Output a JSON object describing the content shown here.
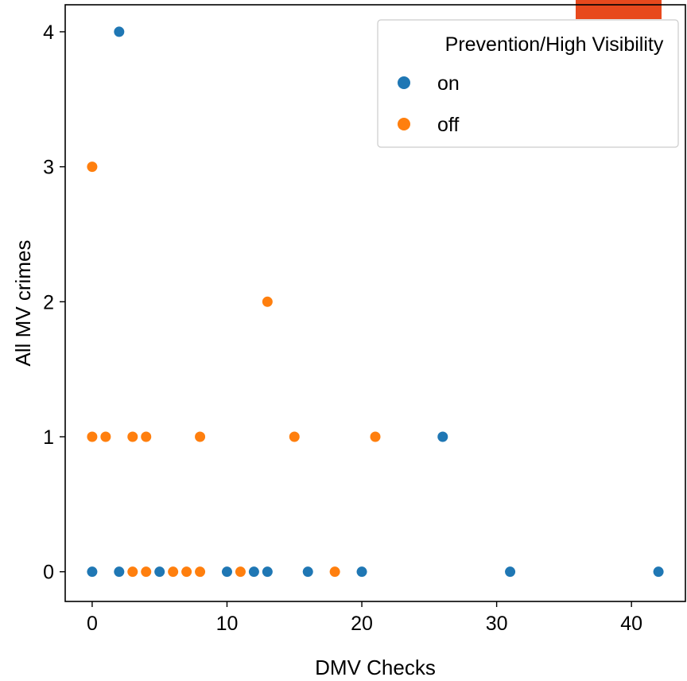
{
  "colors": {
    "on": "#1f77b4",
    "off": "#ff7f0e",
    "corner_badge": "#e8491d"
  },
  "chart_data": {
    "type": "scatter",
    "title": "",
    "xlabel": "DMV Checks",
    "ylabel": "All MV crimes",
    "xlim": [
      -2,
      44
    ],
    "ylim": [
      -0.22,
      4.2
    ],
    "xticks": [
      0,
      10,
      20,
      30,
      40
    ],
    "yticks": [
      0,
      1,
      2,
      3,
      4
    ],
    "grid": false,
    "legend": {
      "title": "Prevention/High Visibility",
      "placement": "top-right",
      "entries": [
        "on",
        "off"
      ]
    },
    "series": [
      {
        "name": "on",
        "points": [
          [
            2,
            4
          ],
          [
            26,
            1
          ],
          [
            0,
            0
          ],
          [
            2,
            0
          ],
          [
            5,
            0
          ],
          [
            10,
            0
          ],
          [
            12,
            0
          ],
          [
            13,
            0
          ],
          [
            16,
            0
          ],
          [
            20,
            0
          ],
          [
            31,
            0
          ],
          [
            42,
            0
          ]
        ]
      },
      {
        "name": "off",
        "points": [
          [
            0,
            3
          ],
          [
            13,
            2
          ],
          [
            0,
            1
          ],
          [
            1,
            1
          ],
          [
            3,
            1
          ],
          [
            4,
            1
          ],
          [
            8,
            1
          ],
          [
            15,
            1
          ],
          [
            21,
            1
          ],
          [
            3,
            0
          ],
          [
            4,
            0
          ],
          [
            6,
            0
          ],
          [
            7,
            0
          ],
          [
            8,
            0
          ],
          [
            11,
            0
          ],
          [
            18,
            0
          ]
        ]
      }
    ]
  }
}
